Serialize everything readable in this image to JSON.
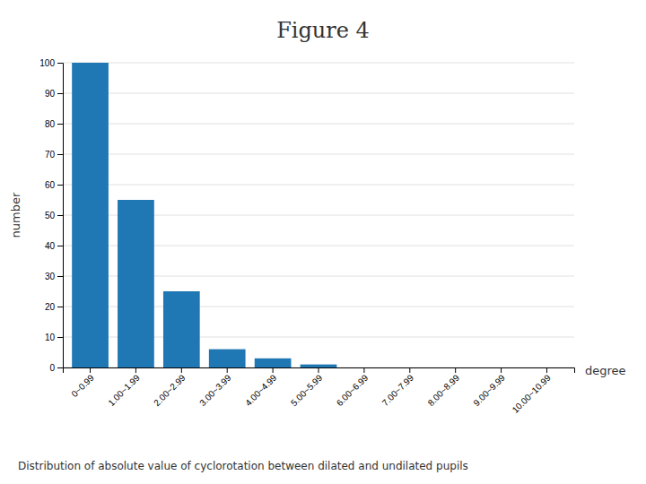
{
  "chart_data": {
    "type": "bar",
    "title": "Figure 4",
    "categories": [
      "0~0.99",
      "1.00~1.99",
      "2.00~2.99",
      "3.00~3.99",
      "4.00~4.99",
      "5.00~5.99",
      "6.00~6.99",
      "7.00~7.99",
      "8.00~8.99",
      "9.00~9.99",
      "10.00~10.99"
    ],
    "values": [
      100,
      55,
      25,
      6,
      3,
      1,
      0,
      0,
      0,
      0,
      0
    ],
    "x_label": "degree",
    "y_label": "number",
    "caption": "Distribution of absolute value of cyclorotation between dilated and undilated pupils",
    "ylim": [
      0,
      100
    ],
    "yticks": [
      0,
      10,
      20,
      30,
      40,
      50,
      60,
      70,
      80,
      90,
      100
    ],
    "grid": true
  }
}
